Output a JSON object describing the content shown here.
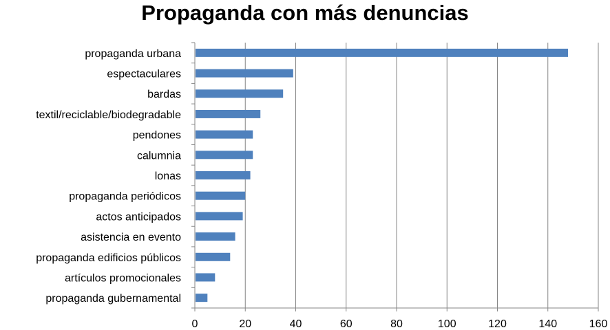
{
  "chart_data": {
    "type": "bar",
    "orientation": "horizontal",
    "title": "Propaganda con más denuncias",
    "categories": [
      "propaganda urbana",
      "espectaculares",
      "bardas",
      "textil/reciclable/biodegradable",
      "pendones",
      "calumnia",
      "lonas",
      "propaganda periódicos",
      "actos anticipados",
      "asistencia en evento",
      "propaganda edificios públicos",
      "artículos promocionales",
      "propaganda gubernamental"
    ],
    "values": [
      148,
      39,
      35,
      26,
      23,
      23,
      22,
      20,
      19,
      16,
      14,
      8,
      5
    ],
    "xlim": [
      0,
      160
    ],
    "xticks": [
      "0",
      "20",
      "40",
      "60",
      "80",
      "100",
      "120",
      "140",
      "160"
    ],
    "grid": "vertical",
    "legend": "none",
    "bar_color": "#4F81BD",
    "grid_color": "#868686"
  }
}
